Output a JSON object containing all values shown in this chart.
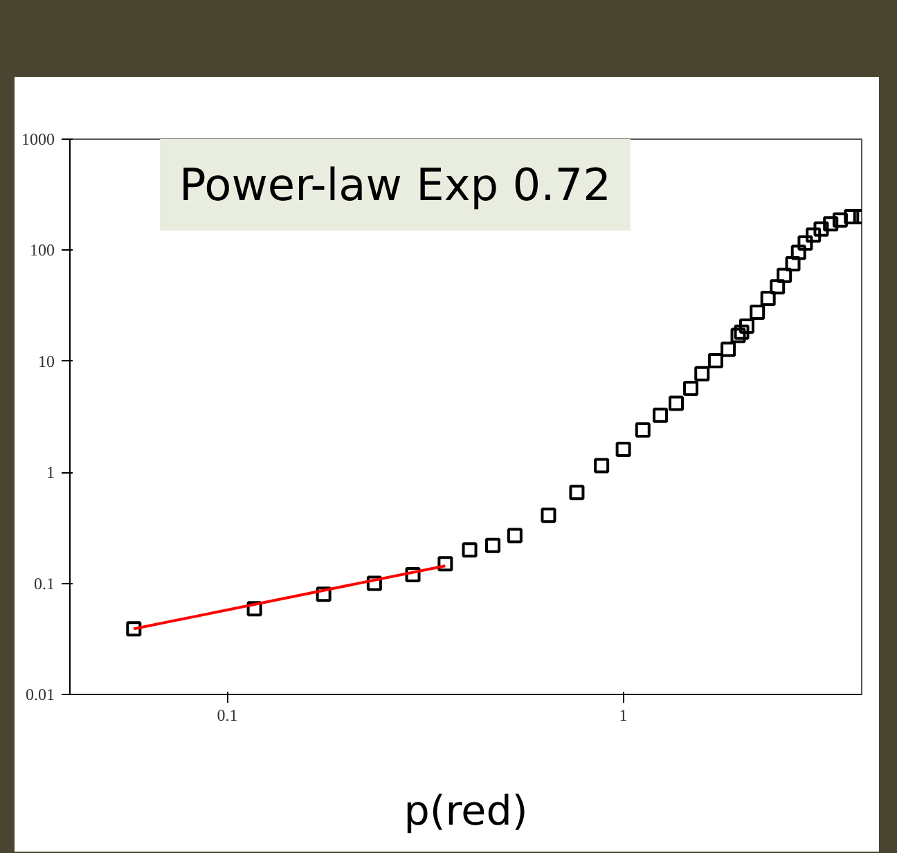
{
  "chart_data": {
    "type": "scatter",
    "xlabel": "p(red)",
    "annotations": [
      "Power-law Exp 0.72"
    ],
    "log": "xy",
    "xlim": [
      0.04,
      4
    ],
    "ylim": [
      0.01,
      1000
    ],
    "xticks": [
      0.1,
      1
    ],
    "yticks": [
      0.01,
      0.1,
      1,
      10,
      100,
      1000
    ],
    "x": [
      0.058,
      0.117,
      0.175,
      0.235,
      0.294,
      0.355,
      0.409,
      0.468,
      0.532,
      0.647,
      0.763,
      0.881,
      1.0,
      1.12,
      1.24,
      1.36,
      1.48,
      1.58,
      1.71,
      1.84,
      1.95,
      1.99,
      2.05,
      2.18,
      2.32,
      2.45,
      2.55,
      2.68,
      2.77,
      2.88,
      3.02,
      3.16,
      3.34,
      3.53,
      3.77,
      3.98
    ],
    "series": [
      {
        "marker": "square",
        "color": "#000000",
        "values": [
          0.039,
          0.059,
          0.08,
          0.1,
          0.12,
          0.15,
          0.2,
          0.22,
          0.27,
          0.41,
          0.66,
          1.15,
          1.61,
          2.41,
          3.27,
          4.19,
          5.7,
          7.74,
          10.1,
          12.8,
          17.1,
          18.3,
          20.7,
          27.6,
          36.8,
          46.8,
          59.4,
          75.5,
          95.7,
          116,
          137,
          155,
          173,
          187,
          200,
          200
        ]
      },
      {
        "type": "line",
        "color": "#ff0000",
        "x": [
          0.058,
          0.355
        ],
        "values": [
          0.039,
          0.144
        ]
      }
    ]
  }
}
